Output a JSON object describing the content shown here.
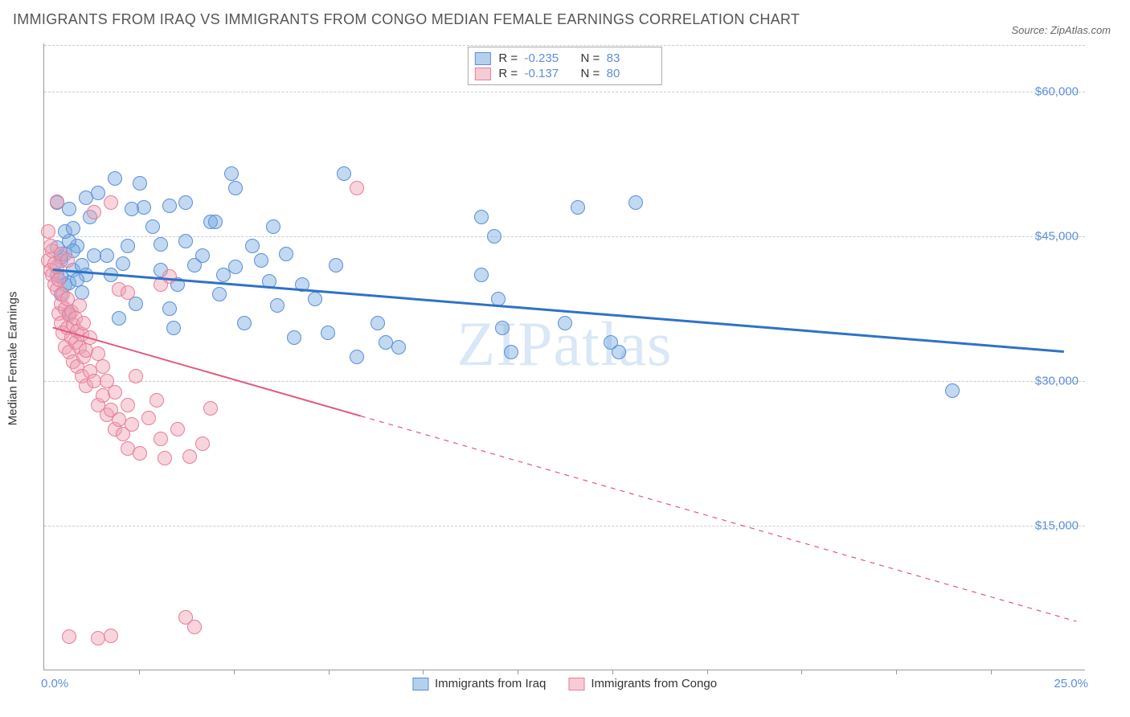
{
  "title": "IMMIGRANTS FROM IRAQ VS IMMIGRANTS FROM CONGO MEDIAN FEMALE EARNINGS CORRELATION CHART",
  "source": "Source: ZipAtlas.com",
  "watermark": "ZIPatlas",
  "yaxis_label": "Median Female Earnings",
  "chart": {
    "type": "scatter",
    "xlim": [
      0,
      25
    ],
    "ylim": [
      0,
      65000
    ],
    "xaxis_min_label": "0.0%",
    "xaxis_max_label": "25.0%",
    "yticks": [
      15000,
      30000,
      45000,
      60000
    ],
    "ytick_labels": [
      "$15,000",
      "$30,000",
      "$45,000",
      "$60,000"
    ],
    "xticks": [
      2.27,
      4.55,
      6.82,
      9.09,
      11.36,
      13.64,
      15.91,
      18.18,
      20.45,
      22.73
    ],
    "grid_color": "#cccccc",
    "axis_color": "#999999",
    "background_color": "#ffffff",
    "marker_radius": 9,
    "series": [
      {
        "name": "Immigrants from Iraq",
        "color_fill": "rgba(120,170,225,0.45)",
        "color_stroke": "#5b8fd6",
        "line_color": "#2f72c7",
        "line_width": 3,
        "R": "-0.235",
        "N": "83",
        "trend": {
          "x1": 0.2,
          "y1": 41500,
          "x2": 24.5,
          "y2": 33000,
          "solid_until_x": 24.5
        },
        "points": [
          [
            0.3,
            41000
          ],
          [
            0.4,
            42500
          ],
          [
            0.5,
            40000
          ],
          [
            0.5,
            43200
          ],
          [
            0.7,
            41500
          ],
          [
            0.6,
            40200
          ],
          [
            0.8,
            44000
          ],
          [
            0.9,
            42000
          ],
          [
            0.4,
            39000
          ],
          [
            0.6,
            44500
          ],
          [
            0.3,
            48500
          ],
          [
            1.0,
            41000
          ],
          [
            0.7,
            43500
          ],
          [
            0.6,
            37000
          ],
          [
            1.2,
            43000
          ],
          [
            0.8,
            40500
          ],
          [
            0.5,
            45500
          ],
          [
            0.9,
            39200
          ],
          [
            0.4,
            42800
          ],
          [
            1.1,
            47000
          ],
          [
            1.3,
            49500
          ],
          [
            1.6,
            41000
          ],
          [
            1.8,
            36500
          ],
          [
            2.0,
            44000
          ],
          [
            1.5,
            43000
          ],
          [
            2.2,
            38000
          ],
          [
            2.4,
            48000
          ],
          [
            1.9,
            42200
          ],
          [
            2.6,
            46000
          ],
          [
            1.7,
            51000
          ],
          [
            2.8,
            41500
          ],
          [
            3.0,
            37500
          ],
          [
            2.3,
            50500
          ],
          [
            3.2,
            40000
          ],
          [
            3.4,
            44500
          ],
          [
            3.6,
            42000
          ],
          [
            3.1,
            35500
          ],
          [
            3.8,
            43000
          ],
          [
            4.0,
            46500
          ],
          [
            4.2,
            39000
          ],
          [
            4.5,
            51500
          ],
          [
            4.3,
            41000
          ],
          [
            4.8,
            36000
          ],
          [
            5.0,
            44000
          ],
          [
            5.2,
            42500
          ],
          [
            5.4,
            40300
          ],
          [
            5.6,
            37800
          ],
          [
            5.8,
            43200
          ],
          [
            6.0,
            34500
          ],
          [
            6.2,
            40000
          ],
          [
            4.6,
            50000
          ],
          [
            6.5,
            38500
          ],
          [
            6.8,
            35000
          ],
          [
            7.0,
            42000
          ],
          [
            7.2,
            51500
          ],
          [
            7.5,
            32500
          ],
          [
            8.0,
            36000
          ],
          [
            8.2,
            34000
          ],
          [
            8.5,
            33500
          ],
          [
            10.5,
            47000
          ],
          [
            10.8,
            45000
          ],
          [
            10.5,
            41000
          ],
          [
            10.9,
            38500
          ],
          [
            11.0,
            35500
          ],
          [
            11.2,
            33000
          ],
          [
            12.5,
            36000
          ],
          [
            12.8,
            48000
          ],
          [
            13.6,
            34000
          ],
          [
            13.8,
            33000
          ],
          [
            14.2,
            48500
          ],
          [
            3.0,
            48200
          ],
          [
            2.1,
            47800
          ],
          [
            1.0,
            49000
          ],
          [
            0.6,
            47800
          ],
          [
            2.8,
            44200
          ],
          [
            3.4,
            48500
          ],
          [
            4.1,
            46500
          ],
          [
            4.6,
            41800
          ],
          [
            5.5,
            46000
          ],
          [
            21.8,
            29000
          ],
          [
            0.3,
            43800
          ],
          [
            0.4,
            40800
          ],
          [
            0.7,
            45800
          ]
        ]
      },
      {
        "name": "Immigrants from Congo",
        "color_fill": "rgba(240,160,180,0.45)",
        "color_stroke": "#e57f9a",
        "line_color": "#e15a7e",
        "line_width": 2,
        "R": "-0.137",
        "N": "80",
        "trend": {
          "x1": 0.2,
          "y1": 35500,
          "x2": 24.8,
          "y2": 5000,
          "solid_until_x": 7.6
        },
        "points": [
          [
            0.1,
            42500
          ],
          [
            0.15,
            41500
          ],
          [
            0.2,
            41000
          ],
          [
            0.2,
            43500
          ],
          [
            0.25,
            40000
          ],
          [
            0.3,
            39500
          ],
          [
            0.3,
            41800
          ],
          [
            0.35,
            37000
          ],
          [
            0.35,
            40500
          ],
          [
            0.4,
            38000
          ],
          [
            0.4,
            36000
          ],
          [
            0.45,
            39000
          ],
          [
            0.45,
            35000
          ],
          [
            0.5,
            37500
          ],
          [
            0.5,
            33500
          ],
          [
            0.55,
            35500
          ],
          [
            0.55,
            38500
          ],
          [
            0.6,
            36800
          ],
          [
            0.6,
            33000
          ],
          [
            0.65,
            34500
          ],
          [
            0.65,
            37200
          ],
          [
            0.7,
            32000
          ],
          [
            0.7,
            35800
          ],
          [
            0.75,
            34000
          ],
          [
            0.75,
            36500
          ],
          [
            0.8,
            31500
          ],
          [
            0.8,
            35200
          ],
          [
            0.85,
            33500
          ],
          [
            0.85,
            37800
          ],
          [
            0.9,
            30500
          ],
          [
            0.9,
            34800
          ],
          [
            0.95,
            32500
          ],
          [
            0.95,
            36000
          ],
          [
            1.0,
            29500
          ],
          [
            1.0,
            33200
          ],
          [
            1.1,
            31000
          ],
          [
            1.1,
            34500
          ],
          [
            1.2,
            47500
          ],
          [
            1.2,
            30000
          ],
          [
            1.3,
            32800
          ],
          [
            1.3,
            27500
          ],
          [
            1.4,
            28500
          ],
          [
            1.4,
            31500
          ],
          [
            1.5,
            26500
          ],
          [
            1.5,
            30000
          ],
          [
            1.6,
            48500
          ],
          [
            1.6,
            27000
          ],
          [
            1.7,
            25000
          ],
          [
            1.7,
            28800
          ],
          [
            1.8,
            39500
          ],
          [
            1.8,
            26000
          ],
          [
            1.9,
            24500
          ],
          [
            2.0,
            27500
          ],
          [
            2.0,
            23000
          ],
          [
            2.1,
            25500
          ],
          [
            2.2,
            30500
          ],
          [
            2.3,
            22500
          ],
          [
            0.1,
            45500
          ],
          [
            0.3,
            48600
          ],
          [
            2.5,
            26200
          ],
          [
            2.7,
            28000
          ],
          [
            2.8,
            40000
          ],
          [
            2.8,
            24000
          ],
          [
            2.9,
            22000
          ],
          [
            3.0,
            40800
          ],
          [
            3.2,
            25000
          ],
          [
            3.5,
            22200
          ],
          [
            3.8,
            23500
          ],
          [
            4.0,
            27200
          ],
          [
            7.5,
            50000
          ],
          [
            0.6,
            3500
          ],
          [
            1.3,
            3300
          ],
          [
            1.6,
            3600
          ],
          [
            3.4,
            5500
          ],
          [
            3.6,
            4500
          ],
          [
            2.0,
            39200
          ],
          [
            0.25,
            42200
          ],
          [
            0.4,
            43200
          ],
          [
            0.55,
            42500
          ],
          [
            0.15,
            44000
          ]
        ]
      }
    ]
  },
  "legend_bottom": [
    "Immigrants from Iraq",
    "Immigrants from Congo"
  ],
  "colors": {
    "accent_blue": "#5b8fd6",
    "accent_pink": "#e57f9a",
    "text": "#555555"
  }
}
